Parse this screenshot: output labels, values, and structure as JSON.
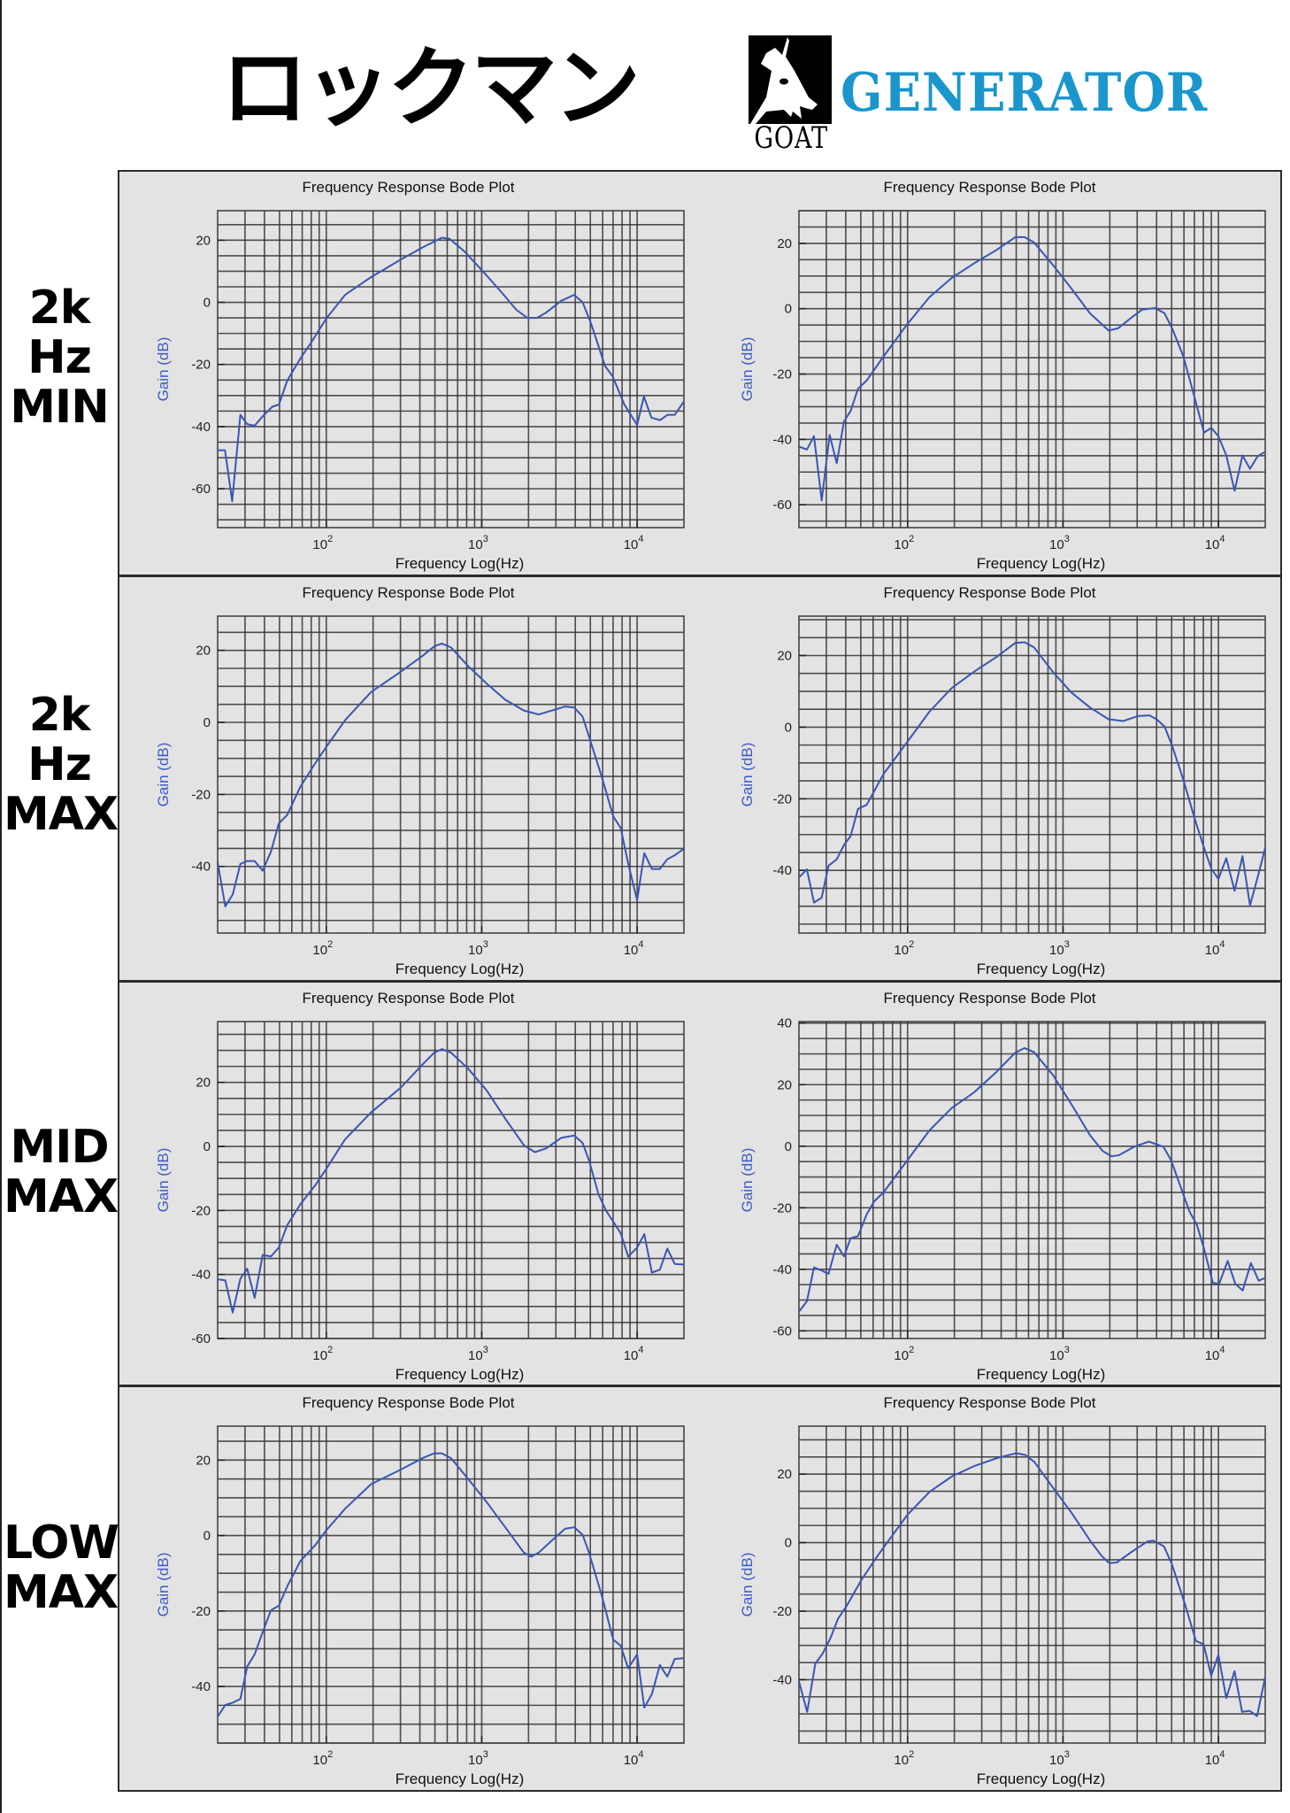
{
  "header": {
    "title": "ロックマン",
    "logo": {
      "icon": "goat-head-icon",
      "mark_text": "GOAT",
      "word": "GENERATOR",
      "word_color": "#1a96cc"
    }
  },
  "row_labels": [
    "2k\nHz\nMIN",
    "2k\nHz\nMAX",
    "MID\nMAX",
    "LOW\nMAX"
  ],
  "colors": {
    "panel_bg": "#e3e3e3",
    "grid": "#333333",
    "curve": "#3a55b4",
    "ylabel": "#3a5bc4"
  },
  "chart_data": [
    {
      "type": "line",
      "row_label": "2k Hz MIN",
      "column": "left",
      "title": "Frequency Response Bode Plot",
      "xlabel": "Frequency Log(Hz)",
      "ylabel": "Gain (dB)",
      "xscale": "log",
      "xlim": [
        20,
        20000
      ],
      "ylim": [
        -72.5,
        29.5
      ],
      "xticks": [
        {
          "base": "10",
          "exp": "2",
          "value": 100
        },
        {
          "base": "10",
          "exp": "3",
          "value": 1000
        },
        {
          "base": "10",
          "exp": "4",
          "value": 10000
        }
      ],
      "yticks": [
        20,
        0,
        -20,
        -40,
        -60
      ],
      "grid": true,
      "grid_step_db": 5,
      "series": [
        {
          "name": "Gain",
          "x": [
            20,
            22.3,
            24.8,
            28,
            31,
            34.6,
            39,
            44.9,
            49.6,
            56,
            68,
            80,
            100,
            132,
            194,
            302,
            420,
            554,
            619,
            770,
            1017,
            1339,
            1670,
            1966,
            2264,
            2600,
            3248,
            3933,
            4460,
            5044,
            6220,
            6950,
            8280,
            10000,
            11050,
            12360,
            14050,
            15700,
            17460,
            20000
          ],
          "y": [
            -47.6,
            -47.6,
            -64,
            -36.2,
            -39.2,
            -39.7,
            -36.7,
            -33.6,
            -32.9,
            -25.2,
            -18.1,
            -12.9,
            -5.2,
            2.4,
            8.1,
            13.8,
            17.8,
            20.8,
            20.5,
            16.5,
            10,
            3.3,
            -2.4,
            -5,
            -5,
            -3.3,
            0.5,
            2.4,
            0,
            -6.7,
            -20.5,
            -23.8,
            -32.9,
            -39.5,
            -30.3,
            -37.1,
            -37.9,
            -36.2,
            -36.2,
            -31.9
          ]
        }
      ]
    },
    {
      "type": "line",
      "row_label": "2k Hz MIN",
      "column": "right",
      "title": "Frequency Response Bode Plot",
      "xlabel": "Frequency Log(Hz)",
      "ylabel": "Gain (dB)",
      "xscale": "log",
      "xlim": [
        20,
        20000
      ],
      "ylim": [
        -67,
        30
      ],
      "xticks": [
        {
          "base": "10",
          "exp": "2",
          "value": 100
        },
        {
          "base": "10",
          "exp": "3",
          "value": 1000
        },
        {
          "base": "10",
          "exp": "4",
          "value": 10000
        }
      ],
      "yticks": [
        20,
        0,
        -20,
        -40,
        -60
      ],
      "grid": true,
      "grid_step_db": 5,
      "series": [
        {
          "name": "Gain",
          "x": [
            20,
            22.5,
            25,
            28,
            31.5,
            35,
            39,
            43,
            48,
            54.5,
            70,
            100,
            138,
            192,
            268,
            374,
            493,
            566,
            650,
            857,
            1130,
            1490,
            1965,
            2260,
            2740,
            3230,
            3920,
            4500,
            5040,
            5950,
            7030,
            8070,
            9000,
            10000,
            11230,
            12700,
            14280,
            15960,
            17850,
            20000
          ],
          "y": [
            -42.2,
            -43.1,
            -39,
            -58.7,
            -38.6,
            -47.3,
            -34.5,
            -31.3,
            -24.5,
            -22,
            -14.6,
            -4.6,
            3.5,
            9.4,
            13.9,
            18,
            21.9,
            21.9,
            20.3,
            13.5,
            6.2,
            -1.4,
            -6.7,
            -6,
            -2.8,
            -0.3,
            0.2,
            -1.4,
            -6,
            -14.6,
            -27.2,
            -37.9,
            -36.5,
            -39,
            -44.9,
            -55.7,
            -44.9,
            -49,
            -45.2,
            -43.8
          ]
        }
      ]
    },
    {
      "type": "line",
      "row_label": "2k Hz MAX",
      "column": "left",
      "title": "Frequency Response Bode Plot",
      "xlabel": "Frequency Log(Hz)",
      "ylabel": "Gain (dB)",
      "xscale": "log",
      "xlim": [
        20,
        20000
      ],
      "ylim": [
        -58.5,
        29.5
      ],
      "xticks": [
        {
          "base": "10",
          "exp": "2",
          "value": 100
        },
        {
          "base": "10",
          "exp": "3",
          "value": 1000
        },
        {
          "base": "10",
          "exp": "4",
          "value": 10000
        }
      ],
      "yticks": [
        20,
        0,
        -20,
        -40
      ],
      "grid": true,
      "grid_step_db": 5,
      "series": [
        {
          "name": "Gain",
          "x": [
            20,
            22.4,
            25,
            28,
            31,
            34.6,
            39,
            44,
            49.5,
            56,
            68,
            85,
            100,
            132,
            194,
            302,
            420,
            495,
            554,
            635,
            815,
            1075,
            1416,
            1866,
            2330,
            2830,
            3440,
            3940,
            4460,
            4900,
            5950,
            7020,
            7830,
            8760,
            10000,
            11120,
            12450,
            14010,
            15640,
            17460,
            20000
          ],
          "y": [
            -38.8,
            -51.1,
            -47.8,
            -39.3,
            -38.5,
            -38.5,
            -41.2,
            -35.9,
            -28.1,
            -25.7,
            -17.9,
            -11.3,
            -6.8,
            0.6,
            8.4,
            14.1,
            18.6,
            21.1,
            21.9,
            20.8,
            15.7,
            10.8,
            6.3,
            3.3,
            2.2,
            3.3,
            4.4,
            4.1,
            1.6,
            -3.9,
            -15.4,
            -26.1,
            -29.3,
            -39.2,
            -49.4,
            -36.3,
            -40.7,
            -40.7,
            -38,
            -36.9,
            -35.1
          ]
        }
      ]
    },
    {
      "type": "line",
      "row_label": "2k Hz MAX",
      "column": "right",
      "title": "Frequency Response Bode Plot",
      "xlabel": "Frequency Log(Hz)",
      "ylabel": "Gain (dB)",
      "xscale": "log",
      "xlim": [
        20,
        20000
      ],
      "ylim": [
        -57.5,
        31
      ],
      "xticks": [
        {
          "base": "10",
          "exp": "2",
          "value": 100
        },
        {
          "base": "10",
          "exp": "3",
          "value": 1000
        },
        {
          "base": "10",
          "exp": "4",
          "value": 10000
        }
      ],
      "yticks": [
        20,
        0,
        -20,
        -40
      ],
      "grid": true,
      "grid_step_db": 5,
      "series": [
        {
          "name": "Gain",
          "x": [
            20,
            22.5,
            25,
            28,
            31,
            35,
            39,
            43,
            48,
            54.5,
            70,
            100,
            138,
            192,
            268,
            374,
            493,
            566,
            650,
            857,
            1130,
            1490,
            1965,
            2440,
            3030,
            3600,
            4000,
            4500,
            5040,
            5950,
            7030,
            8070,
            9000,
            10000,
            11230,
            12700,
            14280,
            15960,
            18060,
            20000
          ],
          "y": [
            -42,
            -39.7,
            -49,
            -47.6,
            -38.7,
            -36.9,
            -32.9,
            -30.4,
            -22.8,
            -21.7,
            -13.1,
            -4,
            4.3,
            10.9,
            15.5,
            19.6,
            23.5,
            23.7,
            22.3,
            15.5,
            9.7,
            5.5,
            2.2,
            1.7,
            3.1,
            3.3,
            2.2,
            0.2,
            -5.2,
            -14.7,
            -25.5,
            -33.7,
            -39.5,
            -42.4,
            -36.6,
            -45.7,
            -36,
            -49.8,
            -41.2,
            -33.7
          ]
        }
      ]
    },
    {
      "type": "line",
      "row_label": "MID MAX",
      "column": "left",
      "title": "Frequency Response Bode Plot",
      "xlabel": "Frequency Log(Hz)",
      "ylabel": "Gain (dB)",
      "xscale": "log",
      "xlim": [
        20,
        20000
      ],
      "ylim": [
        -60,
        39
      ],
      "xticks": [
        {
          "base": "10",
          "exp": "2",
          "value": 100
        },
        {
          "base": "10",
          "exp": "3",
          "value": 1000
        },
        {
          "base": "10",
          "exp": "4",
          "value": 10000
        }
      ],
      "yticks": [
        20,
        0,
        -20,
        -40,
        -60
      ],
      "grid": true,
      "grid_step_db": 5,
      "series": [
        {
          "name": "Gain",
          "x": [
            20,
            22.4,
            25,
            28,
            31,
            34.6,
            39,
            44,
            49.5,
            56,
            68,
            85,
            100,
            132,
            194,
            302,
            420,
            495,
            554,
            635,
            815,
            1075,
            1416,
            1866,
            2200,
            2600,
            3250,
            3940,
            4460,
            4900,
            5640,
            6300,
            7830,
            8760,
            10000,
            11120,
            12450,
            14010,
            15640,
            17460,
            20000
          ],
          "y": [
            -41.5,
            -41.8,
            -51.9,
            -41.3,
            -38.2,
            -47.3,
            -33.9,
            -34.4,
            -31.6,
            -24.6,
            -18.1,
            -12.1,
            -7,
            2.2,
            10.6,
            18.4,
            25.8,
            29.3,
            30.4,
            29.3,
            24.4,
            17.5,
            8.7,
            0.4,
            -1.8,
            -0.6,
            2.7,
            3.4,
            1.1,
            -4.3,
            -14.9,
            -20,
            -27.1,
            -34.4,
            -31.6,
            -27.4,
            -39.4,
            -38.5,
            -31.9,
            -36.7,
            -36.9
          ]
        }
      ]
    },
    {
      "type": "line",
      "row_label": "MID MAX",
      "column": "right",
      "title": "Frequency Response Bode Plot",
      "xlabel": "Frequency Log(Hz)",
      "ylabel": "Gain (dB)",
      "xscale": "log",
      "xlim": [
        20,
        20000
      ],
      "ylim": [
        -62.5,
        40.5
      ],
      "xticks": [
        {
          "base": "10",
          "exp": "2",
          "value": 100
        },
        {
          "base": "10",
          "exp": "3",
          "value": 1000
        },
        {
          "base": "10",
          "exp": "4",
          "value": 10000
        }
      ],
      "yticks": [
        40,
        20,
        0,
        -20,
        -40,
        -60
      ],
      "grid": true,
      "grid_step_db": 5,
      "series": [
        {
          "name": "Gain",
          "x": [
            20,
            22.5,
            25,
            28,
            31,
            35,
            39,
            43,
            48,
            54.5,
            61,
            70,
            100,
            138,
            192,
            268,
            374,
            493,
            566,
            650,
            857,
            1130,
            1490,
            1800,
            2060,
            2300,
            2860,
            3570,
            4430,
            4950,
            5830,
            6510,
            7270,
            8120,
            9200,
            10100,
            11480,
            12820,
            14320,
            16170,
            18140,
            20000
          ],
          "y": [
            -53.8,
            -50.4,
            -39.4,
            -40.4,
            -41.5,
            -32,
            -35.8,
            -29.9,
            -29.2,
            -22.2,
            -17.9,
            -15,
            -4.5,
            5.1,
            12.4,
            17.5,
            24.2,
            30.4,
            31.9,
            30.6,
            23.3,
            13.7,
            3.6,
            -1.6,
            -3.3,
            -2.9,
            -0.2,
            1.5,
            -0.2,
            -4.5,
            -14.5,
            -21.2,
            -25.6,
            -33.7,
            -44.4,
            -44.7,
            -37.3,
            -44.7,
            -46.9,
            -38,
            -43.7,
            -42.8
          ]
        }
      ]
    },
    {
      "type": "line",
      "row_label": "LOW MAX",
      "column": "left",
      "title": "Frequency Response Bode Plot",
      "xlabel": "Frequency Log(Hz)",
      "ylabel": "Gain (dB)",
      "xscale": "log",
      "xlim": [
        20,
        20000
      ],
      "ylim": [
        -55,
        29
      ],
      "xticks": [
        {
          "base": "10",
          "exp": "2",
          "value": 100
        },
        {
          "base": "10",
          "exp": "3",
          "value": 1000
        },
        {
          "base": "10",
          "exp": "4",
          "value": 10000
        }
      ],
      "yticks": [
        20,
        0,
        -20,
        -40
      ],
      "grid": true,
      "grid_step_db": 5,
      "series": [
        {
          "name": "Gain",
          "x": [
            20,
            22.4,
            25,
            28,
            31,
            34.6,
            39,
            44,
            49.5,
            56,
            68,
            85,
            100,
            132,
            194,
            302,
            420,
            495,
            554,
            635,
            815,
            1075,
            1416,
            1866,
            2080,
            2330,
            2830,
            3440,
            3940,
            4460,
            4900,
            5950,
            7020,
            7830,
            8760,
            10000,
            11120,
            12450,
            14010,
            15640,
            17460,
            20000
          ],
          "y": [
            -48,
            -44.9,
            -44.3,
            -43.3,
            -34.7,
            -31.5,
            -25.6,
            -19.8,
            -18.6,
            -13.5,
            -6.8,
            -2.5,
            1.4,
            7.1,
            13.6,
            17.5,
            20.6,
            21.8,
            21.8,
            20.5,
            15.1,
            8.9,
            2.2,
            -4.5,
            -5.6,
            -4.5,
            -1.3,
            1.8,
            2.2,
            0.2,
            -4.5,
            -16.2,
            -27.6,
            -29.2,
            -35.2,
            -31.5,
            -45.6,
            -42,
            -34.3,
            -37.4,
            -32.7,
            -32.5
          ]
        }
      ]
    },
    {
      "type": "line",
      "row_label": "LOW MAX",
      "column": "right",
      "title": "Frequency Response Bode Plot",
      "xlabel": "Frequency Log(Hz)",
      "ylabel": "Gain (dB)",
      "xscale": "log",
      "xlim": [
        20,
        20000
      ],
      "ylim": [
        -58.5,
        34
      ],
      "xticks": [
        {
          "base": "10",
          "exp": "2",
          "value": 100
        },
        {
          "base": "10",
          "exp": "3",
          "value": 1000
        },
        {
          "base": "10",
          "exp": "4",
          "value": 10000
        }
      ],
      "yticks": [
        20,
        0,
        -20,
        -40
      ],
      "grid": true,
      "grid_step_db": 5,
      "series": [
        {
          "name": "Gain",
          "x": [
            20,
            22.6,
            25.5,
            28.5,
            31.8,
            35.7,
            40.5,
            50.6,
            64,
            80,
            100,
            139,
            194,
            270,
            378,
            500,
            572,
            655,
            866,
            1140,
            1505,
            1775,
            1985,
            2220,
            2780,
            3480,
            3790,
            4460,
            4990,
            6070,
            7170,
            8030,
            8980,
            10000,
            11240,
            12690,
            14190,
            15860,
            17730,
            20000
          ],
          "y": [
            -40.5,
            -49.4,
            -35.3,
            -32.3,
            -28,
            -22.2,
            -18.5,
            -10.8,
            -3.9,
            2.2,
            8.2,
            14.9,
            19.4,
            22.4,
            24.7,
            26.1,
            25.6,
            23.5,
            15.9,
            8.6,
            0.4,
            -3.9,
            -6,
            -5.8,
            -2.6,
            0.3,
            0.6,
            -1.1,
            -6,
            -17.7,
            -28.7,
            -29.7,
            -38.8,
            -32.8,
            -45.4,
            -37.5,
            -49.4,
            -49.1,
            -50.6,
            -39.2
          ]
        }
      ]
    }
  ]
}
